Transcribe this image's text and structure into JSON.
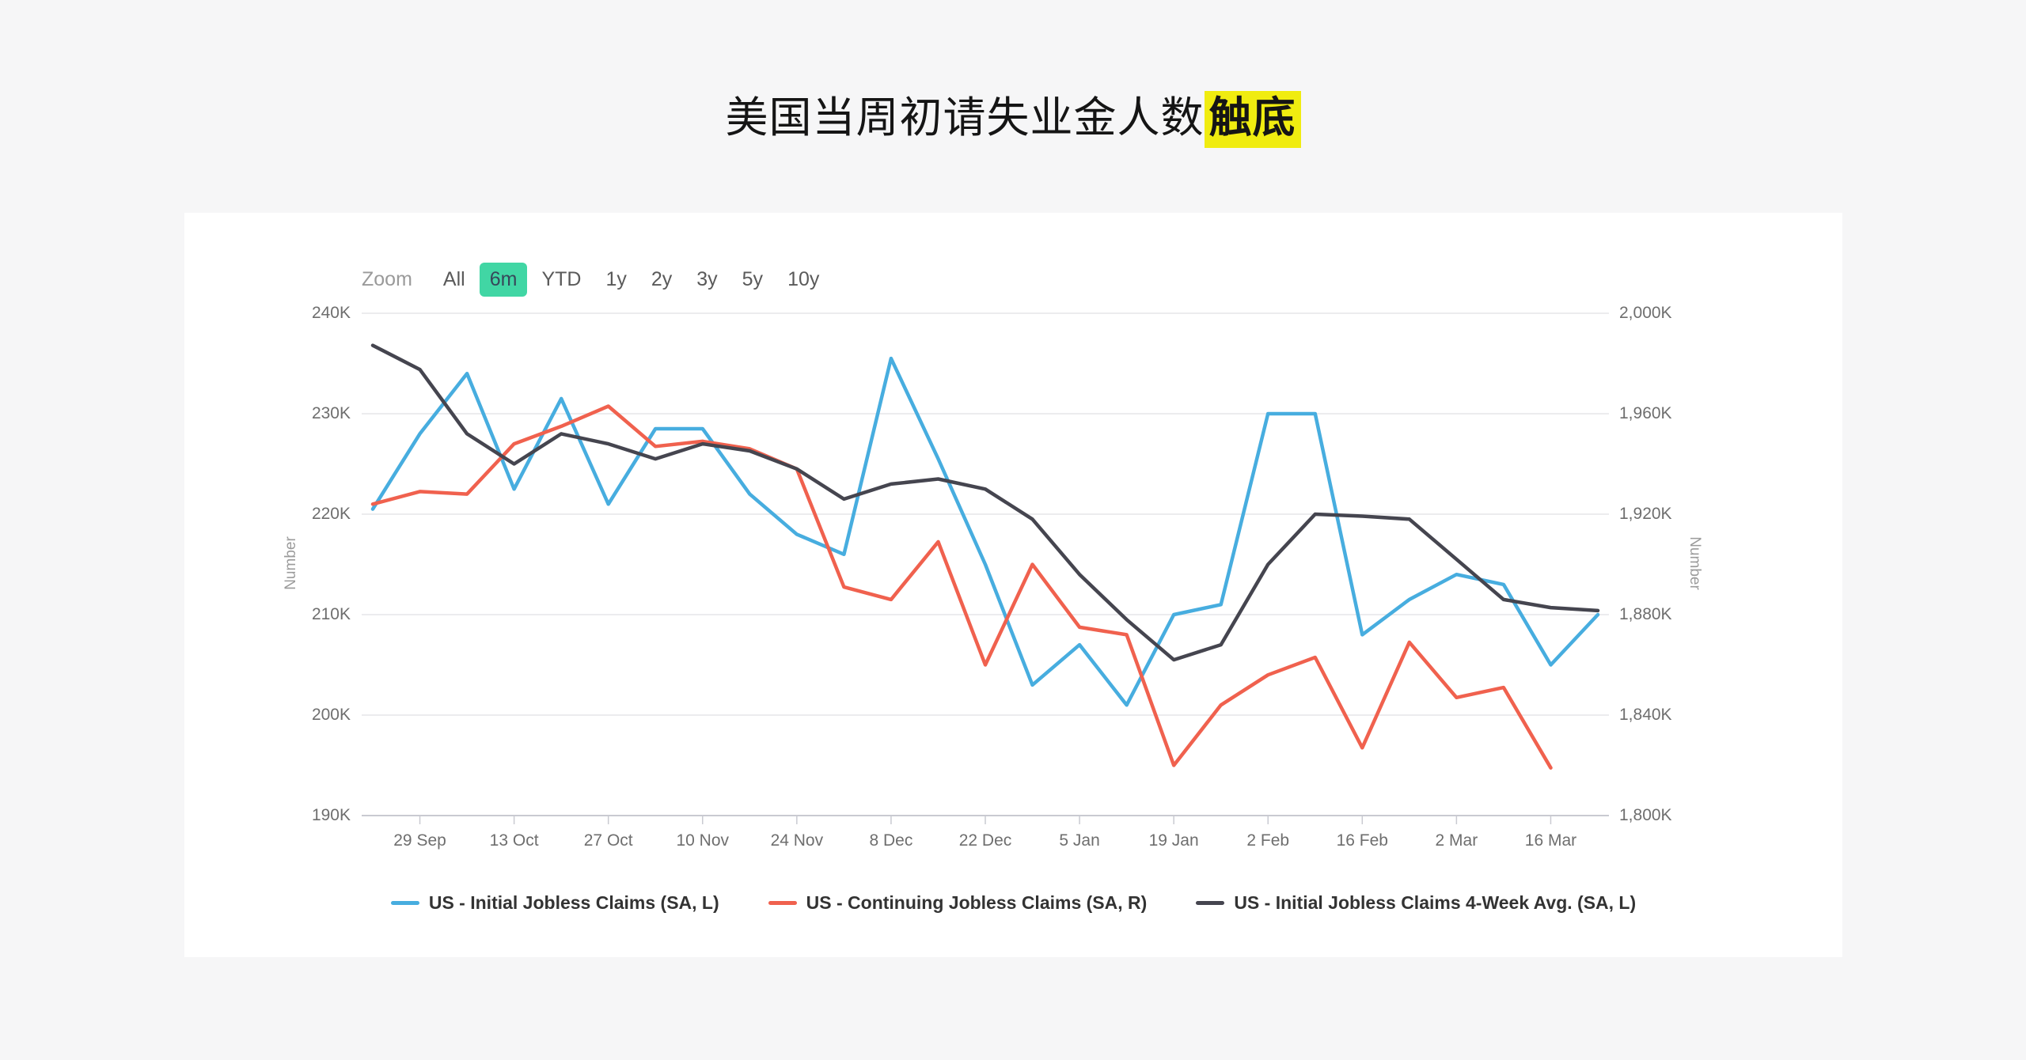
{
  "page": {
    "title_main": "美国当周初请失业金人数",
    "title_highlight": "触底",
    "highlight_color": "#f0ec10",
    "background": "#f6f6f7",
    "card_background": "#ffffff"
  },
  "range_selector": {
    "zoom_label": "Zoom",
    "buttons": [
      "All",
      "6m",
      "YTD",
      "1y",
      "2y",
      "3y",
      "5y",
      "10y"
    ],
    "selected": "6m",
    "selected_bg": "#41d6a4",
    "selected_text": "#37475a"
  },
  "chart_data": {
    "type": "line",
    "x": [
      "22 Sep",
      "29 Sep",
      "6 Oct",
      "13 Oct",
      "20 Oct",
      "27 Oct",
      "3 Nov",
      "10 Nov",
      "17 Nov",
      "24 Nov",
      "1 Dec",
      "8 Dec",
      "15 Dec",
      "22 Dec",
      "29 Dec",
      "5 Jan",
      "12 Jan",
      "19 Jan",
      "26 Jan",
      "2 Feb",
      "9 Feb",
      "16 Feb",
      "23 Feb",
      "2 Mar",
      "9 Mar",
      "16 Mar",
      "23 Mar"
    ],
    "x_tick_labels": [
      "29 Sep",
      "13 Oct",
      "27 Oct",
      "10 Nov",
      "24 Nov",
      "8 Dec",
      "22 Dec",
      "5 Jan",
      "19 Jan",
      "2 Feb",
      "16 Feb",
      "2 Mar",
      "16 Mar"
    ],
    "x_tick_indices": [
      1,
      3,
      5,
      7,
      9,
      11,
      13,
      15,
      17,
      19,
      21,
      23,
      25
    ],
    "series": [
      {
        "name": "US - Initial Jobless Claims (SA, L)",
        "axis": "left",
        "color": "#47addf",
        "values": [
          220.5,
          228,
          234,
          222.5,
          231.5,
          221,
          228.5,
          228.5,
          222,
          218,
          216,
          235.5,
          225.5,
          215,
          203,
          207,
          201,
          210,
          211,
          230,
          230,
          208,
          211.5,
          214,
          213,
          205,
          210
        ]
      },
      {
        "name": "US - Continuing Jobless Claims (SA, R)",
        "axis": "right",
        "color": "#f0614e",
        "values": [
          1924,
          1929,
          1928,
          1948,
          1955,
          1963,
          1947,
          1949,
          1946,
          1938,
          1891,
          1886,
          1909,
          1860,
          1900,
          1875,
          1872,
          1820,
          1844,
          1856,
          1863,
          1827,
          1869,
          1847,
          1851,
          1819
        ]
      },
      {
        "name": "US - Initial Jobless Claims 4-Week Avg. (SA, L)",
        "axis": "left",
        "color": "#45454f",
        "values": [
          236.8,
          234.4,
          228,
          225,
          228,
          227,
          225.5,
          227,
          226.3,
          224.5,
          221.5,
          223,
          223.5,
          222.5,
          219.5,
          214,
          209.5,
          205.5,
          207,
          215,
          220,
          219.8,
          219.5,
          215.5,
          211.5,
          210.7,
          210.4
        ]
      }
    ],
    "left_axis": {
      "title": "Number",
      "ticks": [
        "240K",
        "230K",
        "220K",
        "210K",
        "200K",
        "190K"
      ],
      "min": 190,
      "max": 240,
      "unit": "K"
    },
    "right_axis": {
      "title": "Number",
      "ticks": [
        "2,000K",
        "1,960K",
        "1,920K",
        "1,880K",
        "1,840K",
        "1,800K"
      ],
      "min": 1800,
      "max": 2000,
      "unit": "K"
    },
    "grid": true,
    "legend_position": "bottom"
  }
}
